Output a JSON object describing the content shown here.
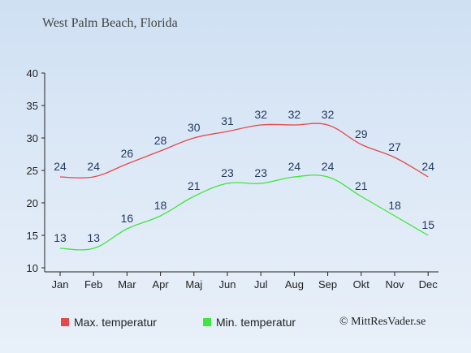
{
  "title": "West Palm Beach, Florida",
  "credit": "© MittResVader.se",
  "colors": {
    "max": "#e8474a",
    "min": "#3ee63e"
  },
  "chart_data": {
    "type": "line",
    "categories": [
      "Jan",
      "Feb",
      "Mar",
      "Apr",
      "Maj",
      "Jun",
      "Jul",
      "Aug",
      "Sep",
      "Okt",
      "Nov",
      "Dec"
    ],
    "series": [
      {
        "name": "Max. temperatur",
        "values": [
          24,
          24,
          26,
          28,
          30,
          31,
          32,
          32,
          32,
          29,
          27,
          24
        ]
      },
      {
        "name": "Min. temperatur",
        "values": [
          13,
          13,
          16,
          18,
          21,
          23,
          23,
          24,
          24,
          21,
          18,
          15
        ]
      }
    ],
    "ylim": [
      10,
      40
    ],
    "yticks": [
      10,
      15,
      20,
      25,
      30,
      35,
      40
    ],
    "grid": false,
    "legend_position": "bottom"
  }
}
